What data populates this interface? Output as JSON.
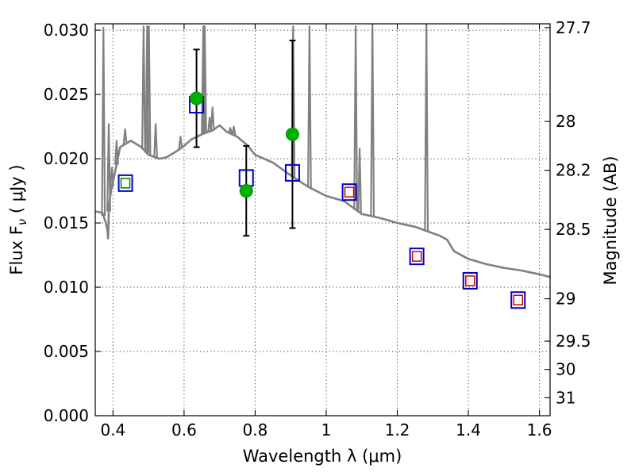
{
  "chart_data": {
    "type": "scatter",
    "title": "",
    "xlabel": "Wavelength  λ (μm)",
    "ylabel": "Flux  F",
    "ylabel_subscript": "ν",
    "ylabel_units": " ( μJy )",
    "y2label": "Magnitude (AB)",
    "xlim": [
      0.35,
      1.63
    ],
    "ylim": [
      0.0,
      0.0305
    ],
    "grid": true,
    "x_ticks": [
      0.4,
      0.6,
      0.8,
      1.0,
      1.2,
      1.4,
      1.6
    ],
    "x_tick_labels": [
      "0.4",
      "0.6",
      "0.8",
      "1",
      "1.2",
      "1.4",
      "1.6"
    ],
    "y_ticks": [
      0.0,
      0.005,
      0.01,
      0.015,
      0.02,
      0.025,
      0.03
    ],
    "y_tick_labels": [
      "0.000",
      "0.005",
      "0.010",
      "0.015",
      "0.020",
      "0.025",
      "0.030"
    ],
    "y2_ticks": [
      {
        "flux": 0.0302,
        "label": "27.7"
      },
      {
        "flux": 0.0229,
        "label": "28"
      },
      {
        "flux": 0.0191,
        "label": "28.2"
      },
      {
        "flux": 0.0145,
        "label": "28.5"
      },
      {
        "flux": 0.0091,
        "label": "29"
      },
      {
        "flux": 0.0058,
        "label": "29.5"
      },
      {
        "flux": 0.0036,
        "label": "30"
      },
      {
        "flux": 0.0014,
        "label": "31"
      }
    ],
    "series": [
      {
        "name": "SED template",
        "style": "line",
        "color": "#808080",
        "x": [
          0.35,
          0.37,
          0.38,
          0.385,
          0.386,
          0.387,
          0.388,
          0.39,
          0.395,
          0.4,
          0.42,
          0.45,
          0.48,
          0.5,
          0.53,
          0.55,
          0.58,
          0.6,
          0.62,
          0.65,
          0.68,
          0.7,
          0.72,
          0.75,
          0.78,
          0.8,
          0.85,
          0.9,
          0.95,
          1.0,
          1.05,
          1.08,
          1.1,
          1.15,
          1.2,
          1.25,
          1.3,
          1.32,
          1.34,
          1.36,
          1.4,
          1.45,
          1.5,
          1.55,
          1.6,
          1.63
        ],
        "y": [
          0.0159,
          0.0158,
          0.015,
          0.0143,
          0.0138,
          0.0146,
          0.0159,
          0.0166,
          0.0176,
          0.0182,
          0.0209,
          0.0214,
          0.0209,
          0.0203,
          0.02,
          0.0201,
          0.0206,
          0.021,
          0.0215,
          0.0219,
          0.0222,
          0.0226,
          0.0221,
          0.0217,
          0.021,
          0.0203,
          0.0197,
          0.0187,
          0.0178,
          0.0171,
          0.0167,
          0.0161,
          0.0157,
          0.0154,
          0.015,
          0.0147,
          0.0142,
          0.014,
          0.0137,
          0.0128,
          0.0122,
          0.0118,
          0.0115,
          0.0113,
          0.011,
          0.0108
        ]
      },
      {
        "name": "SED emission lines",
        "style": "spikes",
        "color": "#808080",
        "x": [
          0.373,
          0.388,
          0.397,
          0.41,
          0.434,
          0.486,
          0.496,
          0.501,
          0.52,
          0.59,
          0.654,
          0.656,
          0.658,
          0.672,
          0.68,
          0.73,
          0.74,
          0.907,
          0.953,
          1.083,
          1.094,
          1.13,
          1.282
        ],
        "y": [
          0.0302,
          0.0227,
          0.0193,
          0.0214,
          0.0223,
          0.0303,
          0.0303,
          0.0303,
          0.0227,
          0.0217,
          0.0303,
          0.0303,
          0.0303,
          0.0232,
          0.024,
          0.0224,
          0.0225,
          0.0303,
          0.0303,
          0.0303,
          0.0208,
          0.0305,
          0.0305
        ]
      },
      {
        "name": "Observed flux",
        "style": "points-errorbars",
        "color": "#00b000",
        "x": [
          0.635,
          0.775,
          0.905
        ],
        "y": [
          0.0247,
          0.0175,
          0.0219
        ],
        "yerr_low": [
          0.0038,
          0.0035,
          0.0073
        ],
        "yerr_high": [
          0.0038,
          0.0035,
          0.0073
        ]
      },
      {
        "name": "Model photometry (blue squares)",
        "style": "open-squares",
        "color": "#0000cc",
        "x": [
          0.435,
          0.635,
          0.775,
          0.905,
          1.065,
          1.255,
          1.405,
          1.54
        ],
        "y": [
          0.0181,
          0.0242,
          0.0185,
          0.0189,
          0.0174,
          0.0124,
          0.0105,
          0.009
        ]
      },
      {
        "name": "Photometry (small squares)",
        "style": "open-squares-small",
        "colors": [
          "#008000",
          "#cc0000",
          "#cc0000",
          "#cc0000",
          "#cc0000"
        ],
        "x": [
          0.435,
          1.065,
          1.255,
          1.405,
          1.54
        ],
        "y": [
          0.0181,
          0.0174,
          0.0124,
          0.0105,
          0.009
        ]
      }
    ]
  }
}
